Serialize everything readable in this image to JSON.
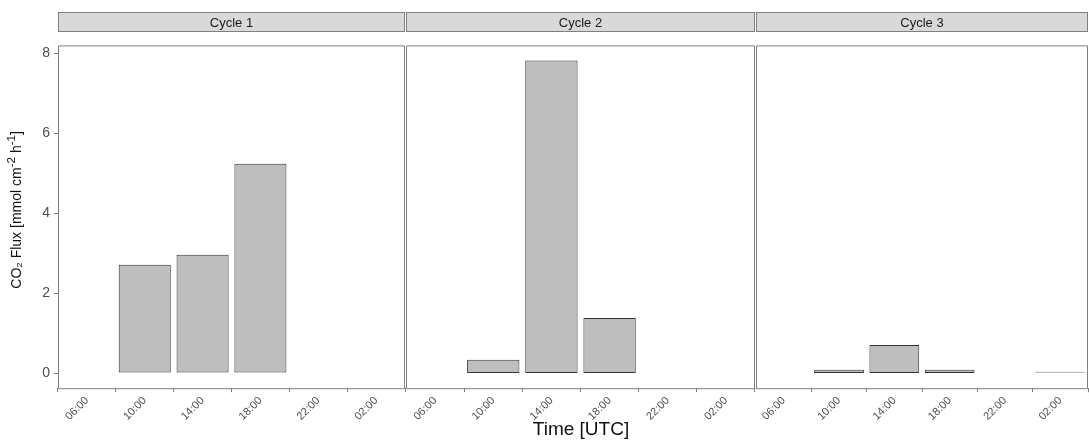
{
  "chart_data": [
    {
      "type": "bar",
      "title": "Cycle 1",
      "ylabel": "CO₂ Flux [mmol cm$^{-2}$ h$^{-1}$]",
      "categories": [
        "06:00",
        "10:00",
        "14:00",
        "18:00",
        "22:00",
        "02:00"
      ],
      "values": [
        null,
        2.71,
        2.96,
        5.24,
        null,
        0
      ],
      "color": "#bebebe",
      "ylim": [
        -0.38,
        8.2
      ],
      "yticks": [
        0,
        2,
        4,
        6,
        8
      ],
      "grid": false
    },
    {
      "type": "bar",
      "title": "Cycle 2",
      "xlabel": "Time [UTC]",
      "categories": [
        "06:00",
        "10:00",
        "14:00",
        "18:00",
        "22:00",
        "02:00"
      ],
      "values": [
        0,
        0.33,
        7.82,
        1.38,
        0,
        0
      ],
      "color": "#bebebe",
      "ylim": [
        -0.38,
        8.2
      ],
      "yticks": [
        0,
        2,
        4,
        6,
        8
      ],
      "grid": false,
      "tick_labels": "x"
    },
    {
      "type": "bar",
      "title": "Cycle 3",
      "categories": [
        "06:00",
        "10:00",
        "14:00",
        "18:00",
        "22:00",
        "02:00"
      ],
      "values": [
        0,
        0.08,
        0.7,
        0.08,
        0,
        0.03
      ],
      "color": "#bebebe",
      "ylim": [
        -0.38,
        8.2
      ],
      "yticks": [
        0,
        2,
        4,
        6,
        8
      ],
      "grid": false,
      "tick_labels": "x"
    }
  ]
}
